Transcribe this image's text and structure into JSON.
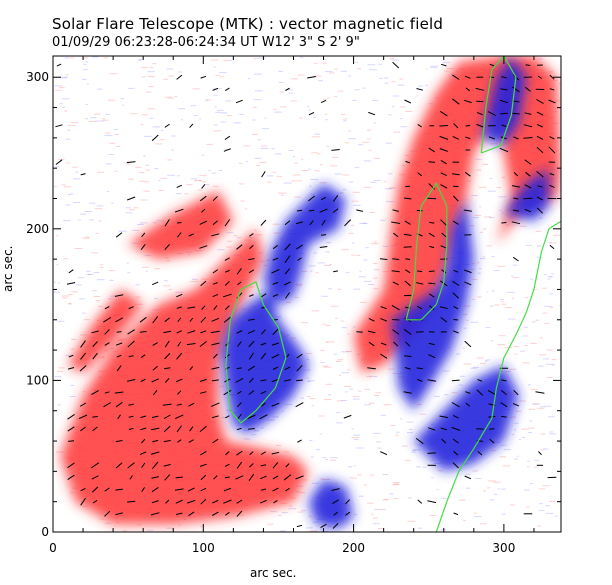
{
  "chart_data": {
    "type": "heatmap",
    "title": "Solar Flare Telescope (MTK) : vector magnetic field",
    "subtitle": "01/09/29  06:23:28-06:24:34 UT    W12' 3\"   S 2' 9\"",
    "xlabel": "arc sec.",
    "ylabel": "arc sec.",
    "xlim": [
      0,
      338
    ],
    "ylim": [
      0,
      314
    ],
    "xticks": [
      0,
      100,
      200,
      300
    ],
    "yticks": [
      0,
      100,
      200,
      300
    ],
    "xtick_labels": [
      "0",
      "100",
      "200",
      "300"
    ],
    "ytick_labels": [
      "0",
      "100",
      "200",
      "300"
    ],
    "positive_color": "#ff3333",
    "negative_color": "#2222dd",
    "contour_color": "#44dd44",
    "arrow_color": "#000000",
    "positive_regions": [
      {
        "name": "left-lobe",
        "points": [
          [
            5,
            50
          ],
          [
            20,
            90
          ],
          [
            40,
            120
          ],
          [
            70,
            150
          ],
          [
            95,
            160
          ],
          [
            110,
            175
          ],
          [
            125,
            190
          ],
          [
            135,
            200
          ],
          [
            140,
            180
          ],
          [
            130,
            160
          ],
          [
            120,
            140
          ],
          [
            110,
            110
          ],
          [
            110,
            80
          ],
          [
            115,
            60
          ],
          [
            140,
            55
          ],
          [
            160,
            50
          ],
          [
            170,
            40
          ],
          [
            160,
            20
          ],
          [
            120,
            10
          ],
          [
            80,
            5
          ],
          [
            40,
            5
          ],
          [
            15,
            20
          ]
        ]
      },
      {
        "name": "upper-left-patch",
        "points": [
          [
            50,
            190
          ],
          [
            80,
            210
          ],
          [
            110,
            225
          ],
          [
            120,
            205
          ],
          [
            100,
            185
          ],
          [
            70,
            180
          ]
        ]
      },
      {
        "name": "mid-plume",
        "points": [
          [
            200,
            130
          ],
          [
            220,
            160
          ],
          [
            225,
            200
          ],
          [
            230,
            230
          ],
          [
            240,
            260
          ],
          [
            255,
            290
          ],
          [
            270,
            310
          ],
          [
            300,
            314
          ],
          [
            300,
            280
          ],
          [
            280,
            250
          ],
          [
            275,
            220
          ],
          [
            265,
            180
          ],
          [
            255,
            150
          ],
          [
            240,
            130
          ],
          [
            220,
            110
          ],
          [
            205,
            105
          ]
        ]
      },
      {
        "name": "right-band",
        "points": [
          [
            295,
            190
          ],
          [
            315,
            215
          ],
          [
            335,
            220
          ],
          [
            338,
            240
          ],
          [
            335,
            300
          ],
          [
            320,
            314
          ],
          [
            300,
            314
          ],
          [
            295,
            280
          ],
          [
            300,
            250
          ],
          [
            305,
            220
          ]
        ]
      },
      {
        "name": "left-small",
        "points": [
          [
            10,
            110
          ],
          [
            25,
            135
          ],
          [
            45,
            160
          ],
          [
            60,
            150
          ],
          [
            40,
            125
          ],
          [
            20,
            105
          ]
        ]
      }
    ],
    "negative_regions": [
      {
        "name": "central-core",
        "points": [
          [
            118,
            140
          ],
          [
            130,
            150
          ],
          [
            145,
            160
          ],
          [
            150,
            140
          ],
          [
            165,
            120
          ],
          [
            170,
            110
          ],
          [
            160,
            90
          ],
          [
            145,
            75
          ],
          [
            130,
            65
          ],
          [
            120,
            70
          ],
          [
            115,
            95
          ],
          [
            112,
            120
          ]
        ]
      },
      {
        "name": "central-stalk",
        "points": [
          [
            140,
            165
          ],
          [
            145,
            185
          ],
          [
            155,
            205
          ],
          [
            170,
            220
          ],
          [
            180,
            230
          ],
          [
            195,
            220
          ],
          [
            190,
            200
          ],
          [
            170,
            190
          ],
          [
            165,
            170
          ],
          [
            160,
            155
          ],
          [
            150,
            150
          ]
        ]
      },
      {
        "name": "right-core",
        "points": [
          [
            225,
            140
          ],
          [
            240,
            150
          ],
          [
            255,
            160
          ],
          [
            262,
            175
          ],
          [
            265,
            200
          ],
          [
            275,
            220
          ],
          [
            280,
            180
          ],
          [
            275,
            150
          ],
          [
            265,
            120
          ],
          [
            250,
            95
          ],
          [
            240,
            80
          ],
          [
            230,
            95
          ],
          [
            228,
            120
          ]
        ]
      },
      {
        "name": "right-lower",
        "points": [
          [
            240,
            60
          ],
          [
            260,
            80
          ],
          [
            280,
            100
          ],
          [
            300,
            110
          ],
          [
            310,
            90
          ],
          [
            300,
            60
          ],
          [
            280,
            45
          ],
          [
            260,
            40
          ]
        ]
      },
      {
        "name": "lower-center",
        "points": [
          [
            170,
            20
          ],
          [
            180,
            35
          ],
          [
            195,
            30
          ],
          [
            200,
            10
          ],
          [
            190,
            2
          ],
          [
            175,
            5
          ]
        ]
      },
      {
        "name": "right-top",
        "points": [
          [
            285,
            260
          ],
          [
            295,
            300
          ],
          [
            305,
            314
          ],
          [
            315,
            300
          ],
          [
            310,
            270
          ],
          [
            300,
            255
          ]
        ]
      },
      {
        "name": "right-mid",
        "points": [
          [
            300,
            210
          ],
          [
            315,
            230
          ],
          [
            330,
            240
          ],
          [
            330,
            215
          ],
          [
            320,
            205
          ]
        ]
      }
    ],
    "contours": [
      {
        "name": "contour-left",
        "points": [
          [
            118,
            80
          ],
          [
            115,
            110
          ],
          [
            118,
            140
          ],
          [
            125,
            160
          ],
          [
            135,
            165
          ],
          [
            140,
            150
          ],
          [
            150,
            135
          ],
          [
            155,
            115
          ],
          [
            148,
            95
          ],
          [
            135,
            80
          ],
          [
            125,
            72
          ],
          [
            118,
            80
          ]
        ]
      },
      {
        "name": "contour-mid",
        "points": [
          [
            235,
            140
          ],
          [
            240,
            160
          ],
          [
            242,
            190
          ],
          [
            245,
            215
          ],
          [
            255,
            230
          ],
          [
            262,
            215
          ],
          [
            262,
            190
          ],
          [
            260,
            165
          ],
          [
            255,
            150
          ],
          [
            245,
            140
          ],
          [
            235,
            140
          ]
        ]
      },
      {
        "name": "contour-right-top",
        "points": [
          [
            285,
            250
          ],
          [
            288,
            280
          ],
          [
            292,
            305
          ],
          [
            300,
            314
          ],
          [
            308,
            300
          ],
          [
            305,
            275
          ],
          [
            298,
            255
          ],
          [
            285,
            250
          ]
        ]
      },
      {
        "name": "neutral-line",
        "points": [
          [
            255,
            0
          ],
          [
            262,
            20
          ],
          [
            270,
            40
          ],
          [
            280,
            55
          ],
          [
            292,
            75
          ],
          [
            295,
            95
          ],
          [
            300,
            115
          ],
          [
            308,
            130
          ],
          [
            315,
            145
          ],
          [
            320,
            160
          ],
          [
            325,
            185
          ],
          [
            330,
            200
          ],
          [
            338,
            205
          ]
        ]
      }
    ]
  }
}
